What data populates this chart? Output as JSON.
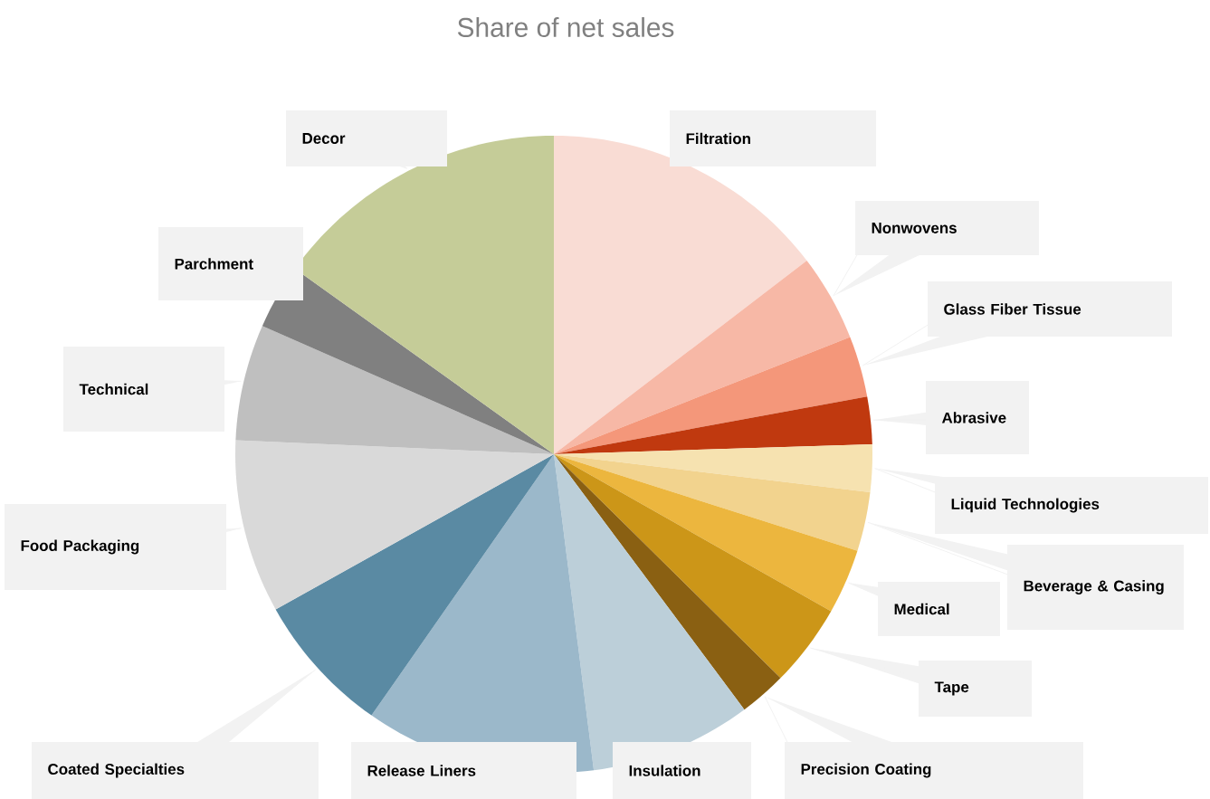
{
  "chart_data": {
    "type": "pie",
    "title": "Share of net sales",
    "categories": [
      "Filtration",
      "Nonwovens",
      "Glass Fiber Tissue",
      "Abrasive",
      "Liquid Technologies",
      "Beverage & Casing",
      "Medical",
      "Tape",
      "Precision Coating",
      "Insulation",
      "Release Liners",
      "Coated Specialties",
      "Food Packaging",
      "Technical",
      "Parchment",
      "Decor"
    ],
    "values": [
      14.6,
      4.4,
      3.1,
      2.4,
      2.4,
      3.0,
      3.3,
      4.2,
      2.4,
      8.2,
      11.7,
      7.2,
      8.8,
      5.9,
      3.3,
      15.1
    ],
    "colors": [
      "#f9dcd4",
      "#f7b8a6",
      "#f4977a",
      "#c0390f",
      "#f6e2b0",
      "#f2d38e",
      "#ecb63e",
      "#cc9618",
      "#8a6012",
      "#bccfd9",
      "#9bb8ca",
      "#5a8aa3",
      "#d9d9d9",
      "#bfbfbf",
      "#808080",
      "#c5cc98"
    ]
  }
}
